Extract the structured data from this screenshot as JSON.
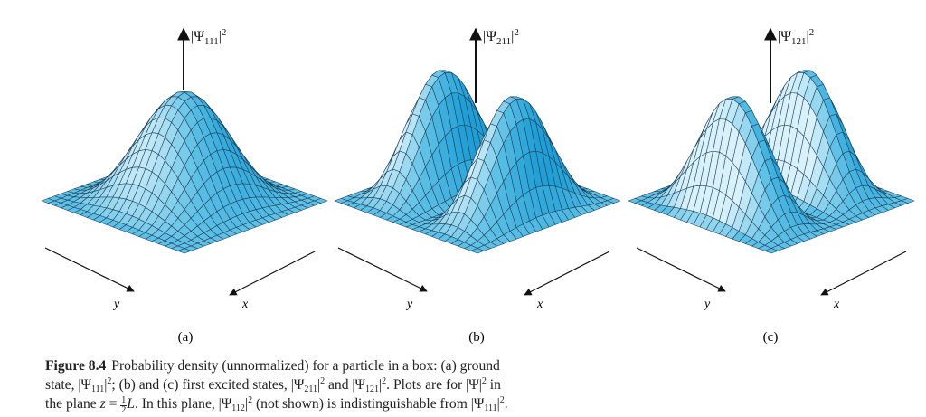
{
  "panels": [
    {
      "id": "a",
      "nx": 1,
      "ny": 1,
      "axis_label_main": "|Ψ",
      "axis_label_sub": "111",
      "axis_label_tail": "|",
      "axis_label_sup": "2",
      "x_label": "x",
      "y_label": "y",
      "panel_label": "(a)"
    },
    {
      "id": "b",
      "nx": 2,
      "ny": 1,
      "axis_label_main": "|Ψ",
      "axis_label_sub": "211",
      "axis_label_tail": "|",
      "axis_label_sup": "2",
      "x_label": "x",
      "y_label": "y",
      "panel_label": "(b)"
    },
    {
      "id": "c",
      "nx": 1,
      "ny": 2,
      "axis_label_main": "|Ψ",
      "axis_label_sub": "121",
      "axis_label_tail": "|",
      "axis_label_sup": "2",
      "x_label": "x",
      "y_label": "y",
      "panel_label": "(c)"
    }
  ],
  "colors": {
    "surface_light": "#d8f1fb",
    "surface_mid": "#5ec0e6",
    "surface_dark": "#1f9fd6",
    "mesh_line": "#1b3d55"
  },
  "caption": {
    "figure_label": "Figure 8.4",
    "l1_a": "Probability density (unnormalized) for a particle in a box: (a) ground",
    "l2_a": "state, |Ψ",
    "l2_sub1": "111",
    "l2_b": "|",
    "l2_sup1": "2",
    "l2_c": "; (b) and (c) first excited states, |Ψ",
    "l2_sub2": "211",
    "l2_d": "|",
    "l2_sup2": "2",
    "l2_e": " and |Ψ",
    "l2_sub3": "121",
    "l2_f": "|",
    "l2_sup3": "2",
    "l2_g": ". Plots are for |Ψ|",
    "l2_sup4": "2",
    "l2_h": " in",
    "l3_a": "the plane ",
    "l3_z": "z",
    "l3_eq": " = ",
    "l3_frac_num": "1",
    "l3_frac_den": "2",
    "l3_L": "L",
    "l3_b": ". In this plane, |Ψ",
    "l3_sub1": "112",
    "l3_c": "|",
    "l3_sup1": "2",
    "l3_d": " (not shown) is indistinguishable from |Ψ",
    "l3_sub2": "111",
    "l3_e": "|",
    "l3_sup2": "2",
    "l3_f": "."
  }
}
